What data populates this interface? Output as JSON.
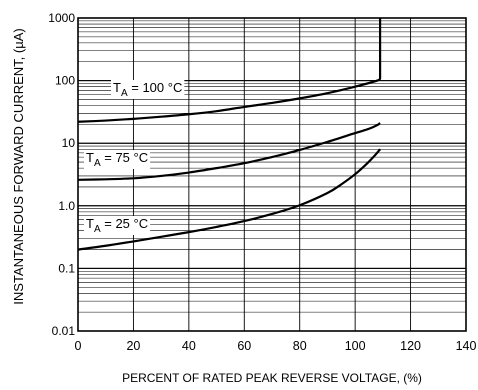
{
  "chart_data": {
    "type": "line",
    "title": "",
    "xlabel": "PERCENT OF RATED PEAK REVERSE VOLTAGE, (%)",
    "ylabel": "INSTANTANEOUS FORWARD CURRENT, (µA)",
    "xlim": [
      0,
      140
    ],
    "ylim": [
      0.01,
      1000
    ],
    "y_scale": "log",
    "grid": true,
    "x_ticks": [
      0,
      20,
      40,
      60,
      80,
      100,
      120,
      140
    ],
    "y_ticks": [
      {
        "value": 0.01,
        "label": "0.01"
      },
      {
        "value": 0.1,
        "label": "0.1"
      },
      {
        "value": 1,
        "label": "1.0"
      },
      {
        "value": 10,
        "label": "10"
      },
      {
        "value": 100,
        "label": "100"
      },
      {
        "value": 1000,
        "label": "1000"
      }
    ],
    "series": [
      {
        "name": "TA = 100 °C",
        "label_main": "T",
        "label_sub": "A",
        "label_rest": " = 100 °C",
        "x": [
          0,
          10,
          20,
          30,
          40,
          50,
          60,
          70,
          80,
          90,
          100,
          108,
          109,
          109
        ],
        "y": [
          22,
          23,
          24.5,
          26.5,
          29,
          32.5,
          38,
          44,
          52,
          63,
          80,
          100,
          110,
          1000
        ]
      },
      {
        "name": "TA = 75 °C",
        "label_main": "T",
        "label_sub": "A",
        "label_rest": " = 75 °C",
        "x": [
          0,
          10,
          20,
          30,
          40,
          50,
          60,
          70,
          80,
          90,
          100,
          105,
          108,
          109
        ],
        "y": [
          2.6,
          2.65,
          2.75,
          3,
          3.4,
          4,
          4.8,
          6,
          7.8,
          10.5,
          14.5,
          17,
          19.5,
          21
        ]
      },
      {
        "name": "TA = 25 °C",
        "label_main": "T",
        "label_sub": "A",
        "label_rest": " = 25 °C",
        "x": [
          0,
          10,
          20,
          30,
          40,
          50,
          60,
          70,
          80,
          90,
          95,
          100,
          104,
          107,
          109
        ],
        "y": [
          0.2,
          0.23,
          0.27,
          0.32,
          0.38,
          0.46,
          0.57,
          0.74,
          1.02,
          1.6,
          2.2,
          3.2,
          4.6,
          6.3,
          8
        ]
      }
    ]
  }
}
